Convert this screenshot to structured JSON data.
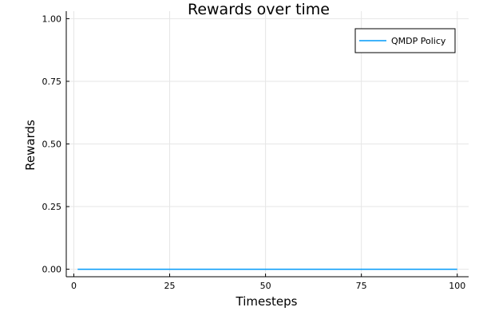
{
  "chart_data": {
    "type": "line",
    "title": "Rewards over time",
    "xlabel": "Timesteps",
    "ylabel": "Rewards",
    "xlim": [
      -1.97,
      102.97
    ],
    "ylim": [
      -0.03,
      1.03
    ],
    "xticks": [
      0,
      25,
      50,
      75,
      100
    ],
    "xtick_labels": [
      "0",
      "25",
      "50",
      "75",
      "100"
    ],
    "yticks": [
      0,
      0.25,
      0.5,
      0.75,
      1.0
    ],
    "ytick_labels": [
      "0.00",
      "0.25",
      "0.50",
      "0.75",
      "1.00"
    ],
    "grid": true,
    "legend_position": "top-right",
    "series": [
      {
        "name": "QMDP Policy",
        "color": "#009af9",
        "x": [
          1,
          100
        ],
        "y": [
          0,
          0
        ]
      }
    ]
  }
}
